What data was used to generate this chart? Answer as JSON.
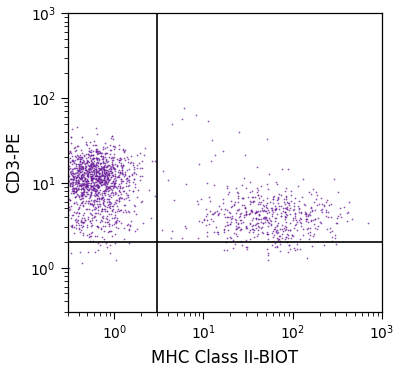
{
  "title": "",
  "xlabel": "MHC Class II-BIOT",
  "ylabel": "CD3-PE",
  "xlim": [
    0.3,
    1000
  ],
  "ylim": [
    0.3,
    1000
  ],
  "dot_color": "#6A1B9A",
  "dot_alpha": 0.75,
  "dot_size": 1.5,
  "quadrant_x": 3.0,
  "quadrant_y": 2.0,
  "seed": 42,
  "populations": [
    {
      "name": "upper_left",
      "n": 1200,
      "x_log_mean": -0.25,
      "x_log_std": 0.22,
      "y_log_mean": 1.08,
      "y_log_std": 0.18
    },
    {
      "name": "lower_left",
      "n": 280,
      "x_log_mean": -0.2,
      "x_log_std": 0.25,
      "y_log_mean": 0.6,
      "y_log_std": 0.2
    },
    {
      "name": "lower_right",
      "n": 550,
      "x_log_mean": 1.75,
      "x_log_std": 0.38,
      "y_log_mean": 0.6,
      "y_log_std": 0.18
    },
    {
      "name": "upper_right_sparse",
      "n": 20,
      "x_log_mean": 1.3,
      "x_log_std": 0.55,
      "y_log_mean": 1.3,
      "y_log_std": 0.35
    }
  ],
  "background_color": "#ffffff",
  "figsize": [
    4.0,
    3.73
  ],
  "dpi": 100,
  "xlabel_fontsize": 12,
  "ylabel_fontsize": 12,
  "tick_labelsize": 10
}
